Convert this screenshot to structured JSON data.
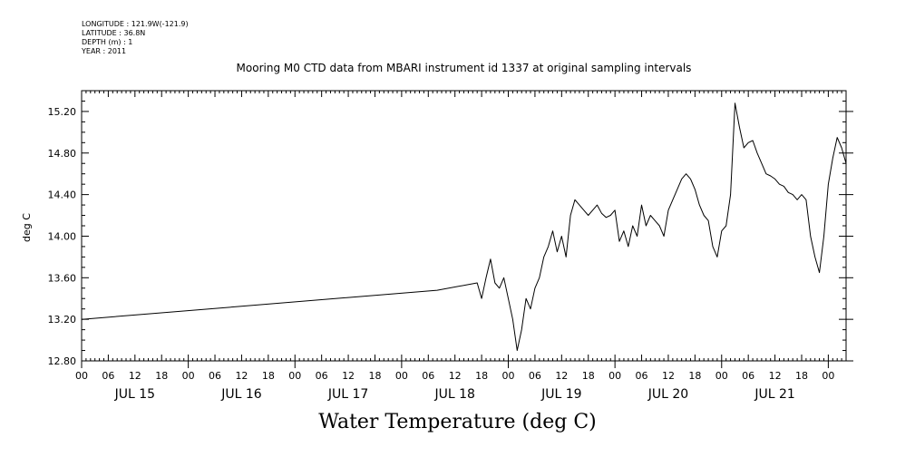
{
  "meta": {
    "longitude": "LONGITUDE : 121.9W(-121.9)",
    "latitude": "LATITUDE : 36.8N",
    "depth": "DEPTH (m) : 1",
    "year": "YEAR : 2011"
  },
  "chart_data": {
    "type": "line",
    "title": "Mooring M0 CTD data from MBARI instrument id 1337 at original sampling intervals",
    "bottom_title": "Water Temperature (deg C)",
    "ylabel": "deg C",
    "xlabel": "",
    "x_unit": "hours since JUL 15 00:00",
    "xlim": [
      0,
      172
    ],
    "ylim": [
      12.8,
      15.4
    ],
    "y_ticks": [
      "12.80",
      "13.20",
      "13.60",
      "14.00",
      "14.40",
      "14.80",
      "15.20"
    ],
    "x_hour_labels": [
      "00",
      "06",
      "12",
      "18",
      "00",
      "06",
      "12",
      "18",
      "00",
      "06",
      "12",
      "18",
      "00",
      "06",
      "12",
      "18",
      "00",
      "06",
      "12",
      "18",
      "00",
      "06",
      "12",
      "18",
      "00",
      "06",
      "12",
      "18",
      "00"
    ],
    "day_labels": [
      "JUL 15",
      "JUL 16",
      "JUL 17",
      "JUL 18",
      "JUL 19",
      "JUL 20",
      "JUL 21"
    ],
    "grid": false,
    "legend": "none",
    "line_color": "#000000",
    "series": [
      {
        "x": [
          0,
          80,
          89,
          90,
          91,
          92,
          93,
          94,
          95,
          96,
          97,
          98,
          99,
          100,
          101,
          102,
          103,
          104,
          105,
          106,
          107,
          108,
          109,
          110,
          111,
          112,
          113,
          114,
          115,
          116,
          117,
          118,
          119,
          120,
          121,
          122,
          123,
          124,
          125,
          126,
          127,
          128,
          129,
          130,
          131,
          132,
          133,
          134,
          135,
          136,
          137,
          138,
          139,
          140,
          141,
          142,
          143,
          144,
          145,
          146,
          147,
          148,
          149,
          150,
          151,
          152,
          153,
          154,
          155,
          156,
          157,
          158,
          159,
          160,
          161,
          162,
          163,
          164,
          165,
          166,
          167,
          168,
          169,
          170,
          171,
          172
        ],
        "y": [
          13.2,
          13.48,
          13.55,
          13.4,
          13.6,
          13.78,
          13.55,
          13.5,
          13.6,
          13.4,
          13.2,
          12.9,
          13.1,
          13.4,
          13.3,
          13.5,
          13.6,
          13.8,
          13.9,
          14.05,
          13.85,
          14.0,
          13.8,
          14.2,
          14.35,
          14.3,
          14.25,
          14.2,
          14.25,
          14.3,
          14.22,
          14.18,
          14.2,
          14.25,
          13.95,
          14.05,
          13.9,
          14.1,
          14.0,
          14.3,
          14.1,
          14.2,
          14.15,
          14.1,
          14.0,
          14.25,
          14.35,
          14.45,
          14.55,
          14.6,
          14.55,
          14.45,
          14.3,
          14.2,
          14.15,
          13.9,
          13.8,
          14.05,
          14.1,
          14.4,
          15.28,
          15.05,
          14.85,
          14.9,
          14.92,
          14.8,
          14.7,
          14.6,
          14.58,
          14.55,
          14.5,
          14.48,
          14.42,
          14.4,
          14.35,
          14.4,
          14.35,
          14.0,
          13.8,
          13.65,
          14.0,
          14.5,
          14.75,
          14.95,
          14.85,
          14.7
        ]
      }
    ]
  }
}
